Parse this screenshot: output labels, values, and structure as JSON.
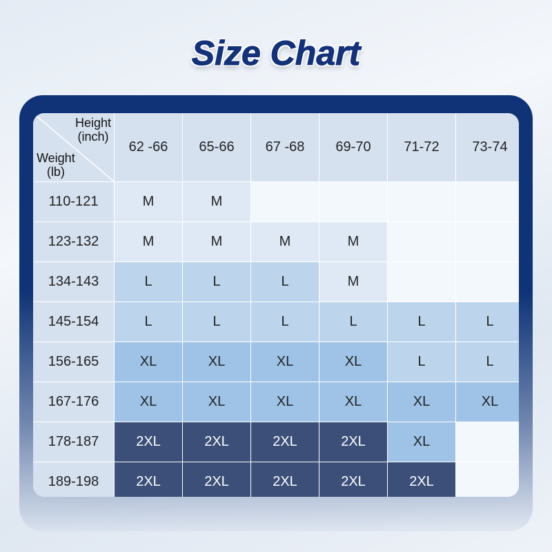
{
  "title": "Size Chart",
  "colors": {
    "frame": "#0f3376",
    "header": "#d6e1f0",
    "M": "#dfe9f5",
    "L": "#bcd5ec",
    "XL": "#9fc3e6",
    "2XL": "#3b4f78",
    "empty": "#f3f8fd"
  },
  "chart_data": {
    "type": "table",
    "title": "Size Chart",
    "column_header_label": {
      "line1": "Height",
      "line2": "(inch)"
    },
    "row_header_label": {
      "line1": "Weight",
      "line2": "(lb)"
    },
    "columns": [
      "62 -66",
      "65-66",
      "67 -68",
      "69-70",
      "71-72",
      "73-74"
    ],
    "rows": [
      {
        "weight": "110-121",
        "sizes": [
          "M",
          "M",
          "",
          "",
          "",
          ""
        ]
      },
      {
        "weight": "123-132",
        "sizes": [
          "M",
          "M",
          "M",
          "M",
          "",
          ""
        ]
      },
      {
        "weight": "134-143",
        "sizes": [
          "L",
          "L",
          "L",
          "M",
          "",
          ""
        ]
      },
      {
        "weight": "145-154",
        "sizes": [
          "L",
          "L",
          "L",
          "L",
          "L",
          "L"
        ]
      },
      {
        "weight": "156-165",
        "sizes": [
          "XL",
          "XL",
          "XL",
          "XL",
          "L",
          "L"
        ]
      },
      {
        "weight": "167-176",
        "sizes": [
          "XL",
          "XL",
          "XL",
          "XL",
          "XL",
          "XL"
        ]
      },
      {
        "weight": "178-187",
        "sizes": [
          "2XL",
          "2XL",
          "2XL",
          "2XL",
          "XL",
          ""
        ]
      },
      {
        "weight": "189-198",
        "sizes": [
          "2XL",
          "2XL",
          "2XL",
          "2XL",
          "2XL",
          ""
        ]
      }
    ]
  }
}
